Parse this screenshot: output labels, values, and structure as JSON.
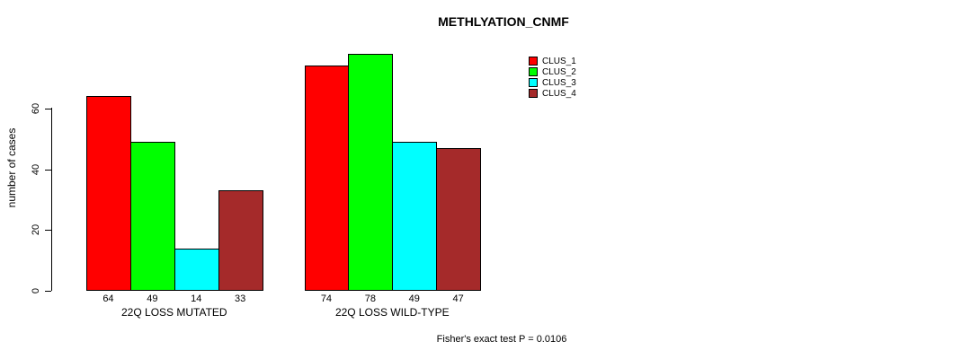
{
  "chart_data": {
    "type": "bar",
    "title": "METHLYATION_CNMF",
    "xlabel": "",
    "ylabel": "number of cases",
    "categories": [
      "22Q LOSS MUTATED",
      "22Q LOSS WILD-TYPE"
    ],
    "series": [
      {
        "name": "CLUS_1",
        "color": "#ff0000",
        "values": [
          64,
          74
        ]
      },
      {
        "name": "CLUS_2",
        "color": "#00ff00",
        "values": [
          49,
          78
        ]
      },
      {
        "name": "CLUS_3",
        "color": "#00ffff",
        "values": [
          14,
          49
        ]
      },
      {
        "name": "CLUS_4",
        "color": "#a52a2a",
        "values": [
          33,
          47
        ]
      }
    ],
    "yticks": [
      0,
      20,
      40,
      60
    ],
    "ylim": [
      0,
      78
    ],
    "grid": false,
    "bar_value_labels": true,
    "legend_position": "top-right",
    "annotation": "Fisher's exact test P = 0.0106"
  }
}
